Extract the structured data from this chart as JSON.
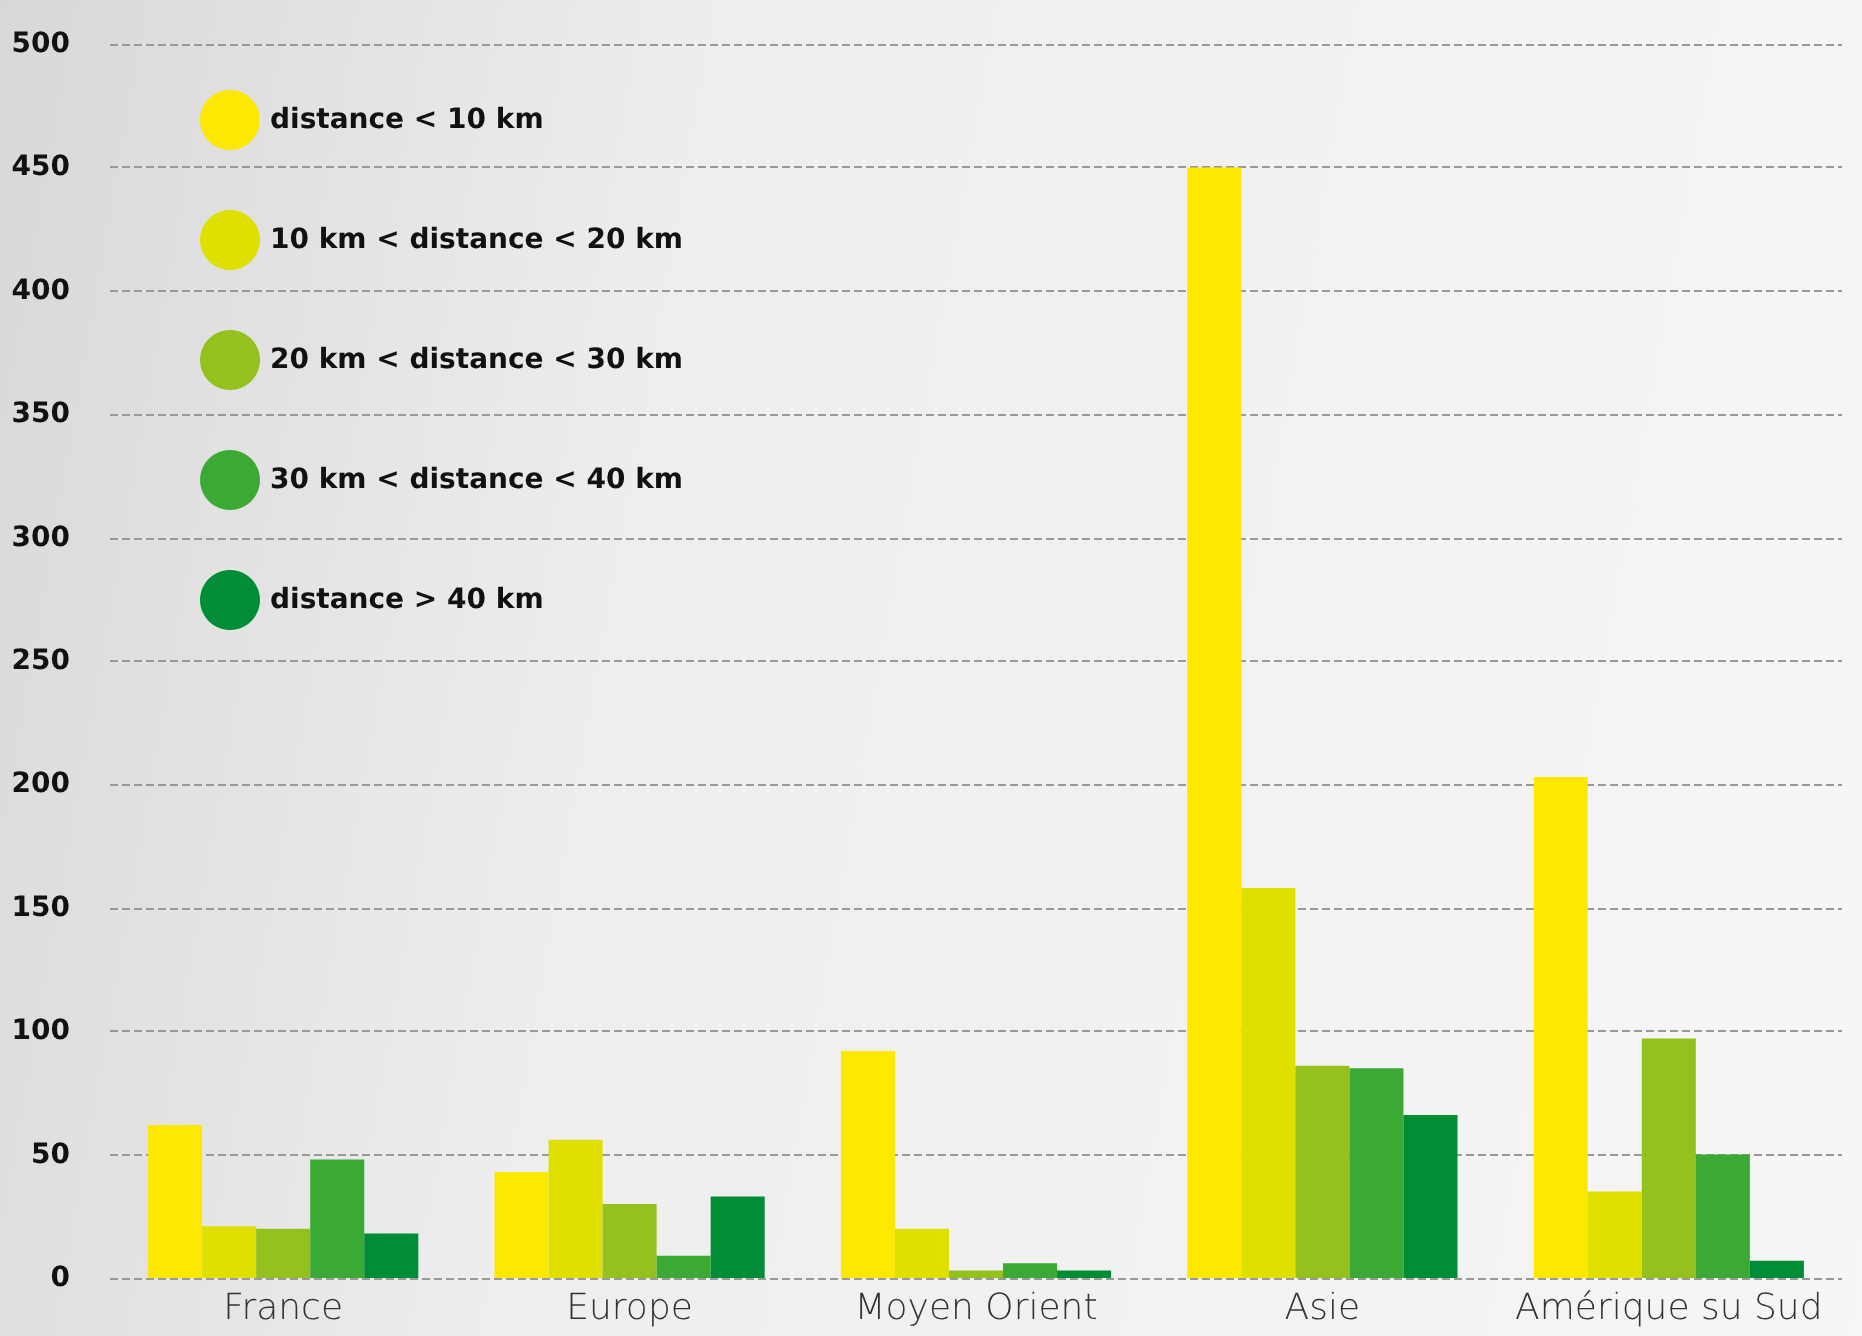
{
  "chart_data": {
    "type": "bar",
    "categories": [
      "France",
      "Europe",
      "Moyen Orient",
      "Asie",
      "Amérique su Sud"
    ],
    "series": [
      {
        "name": "distance < 10 km",
        "color": "#fce800",
        "values": [
          62,
          43,
          92,
          450,
          203
        ]
      },
      {
        "name": "10 km < distance < 20 km",
        "color": "#dfdf00",
        "values": [
          21,
          56,
          20,
          158,
          35
        ]
      },
      {
        "name": "20 km < distance < 30 km",
        "color": "#95c11f",
        "values": [
          20,
          30,
          3,
          86,
          97
        ]
      },
      {
        "name": "30 km < distance < 40 km",
        "color": "#3aaa35",
        "values": [
          48,
          9,
          6,
          85,
          50
        ]
      },
      {
        "name": "distance > 40 km",
        "color": "#008d36",
        "values": [
          18,
          33,
          3,
          66,
          7
        ]
      }
    ],
    "ylim": [
      0,
      500
    ],
    "yticks": [
      0,
      50,
      100,
      150,
      200,
      250,
      300,
      350,
      400,
      450,
      500
    ],
    "grid": "y",
    "legend": "top left"
  }
}
